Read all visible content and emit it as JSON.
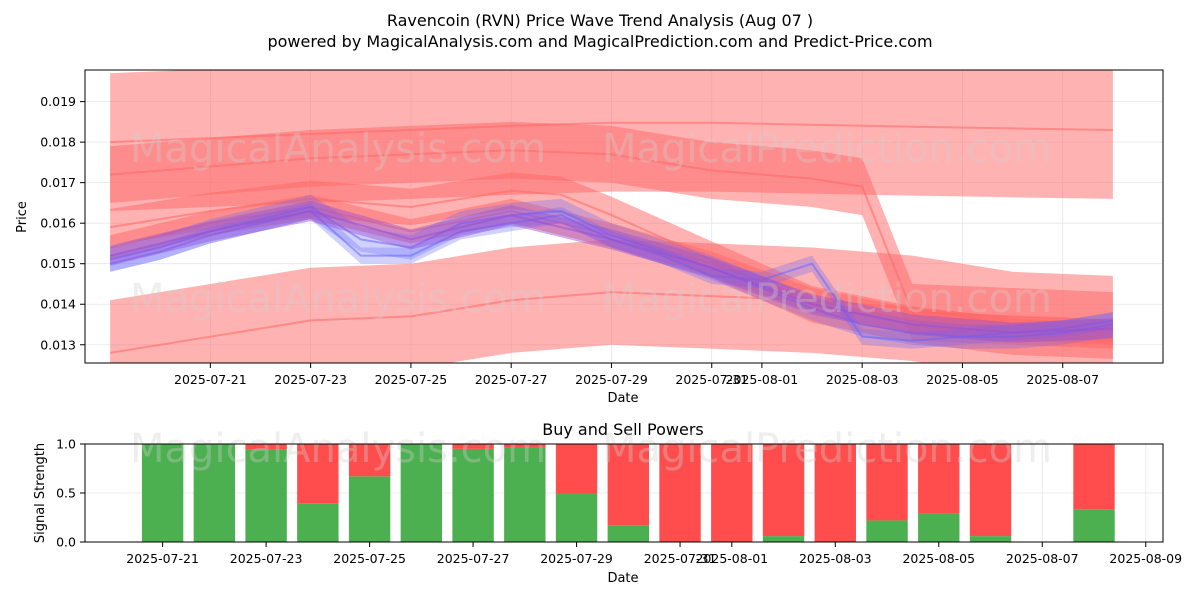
{
  "page": {
    "title": "Ravencoin (RVN) Price Wave Trend Analysis (Aug 07 )",
    "subtitle": "powered by MagicalAnalysis.com and MagicalPrediction.com and Predict-Price.com",
    "watermarks": [
      "MagicalAnalysis.com",
      "MagicalPrediction.com"
    ]
  },
  "colors": {
    "red_band": "#ff6666",
    "blue_band": "#6666ff",
    "buy": "#4caf50",
    "sell": "#ff4d4d",
    "grid": "#e6e6e6"
  },
  "chart_data": [
    {
      "type": "line",
      "title": "",
      "xlabel": "Date",
      "ylabel": "Price",
      "x_start": "2025-07-19",
      "x_end": "2025-08-08",
      "xlim": [
        "2025-07-18 12:00",
        "2025-08-09 00:00"
      ],
      "ylim": [
        0.01255,
        0.01978
      ],
      "x_ticks": [
        "2025-07-21",
        "2025-07-23",
        "2025-07-25",
        "2025-07-27",
        "2025-07-29",
        "2025-07-31",
        "2025-08-01",
        "2025-08-03",
        "2025-08-05",
        "2025-08-07"
      ],
      "x_tick_labels": [
        "2025-07-21",
        "2025-07-23",
        "2025-07-25",
        "2025-07-27",
        "2025-07-29",
        "2025-07-31",
        "2025-08-01",
        "2025-08-03",
        "2025-08-05",
        "2025-08-07"
      ],
      "y_ticks": [
        0.013,
        0.014,
        0.015,
        0.016,
        0.017,
        0.018,
        0.019
      ],
      "y_tick_labels": [
        "0.013",
        "0.014",
        "0.015",
        "0.016",
        "0.017",
        "0.018",
        "0.019"
      ],
      "grid": true,
      "series": [
        {
          "color": "red",
          "x": [
            "2025-07-19",
            "2025-07-21",
            "2025-07-23",
            "2025-07-25",
            "2025-07-27",
            "2025-07-29",
            "2025-07-31",
            "2025-08-02",
            "2025-08-04",
            "2025-08-06",
            "2025-08-08"
          ],
          "values": [
            0.018,
            0.0181,
            0.0182,
            0.0183,
            0.0184,
            0.01848,
            0.01848,
            0.01843,
            0.01838,
            0.01834,
            0.0183
          ],
          "band_width": [
            0.0034,
            0.0034,
            0.0034,
            0.0034,
            0.0034,
            0.0034,
            0.0034,
            0.0034,
            0.0034,
            0.0034,
            0.0034
          ]
        },
        {
          "color": "red",
          "x": [
            "2025-07-19",
            "2025-07-21",
            "2025-07-23",
            "2025-07-25",
            "2025-07-27",
            "2025-07-29",
            "2025-07-31",
            "2025-08-02",
            "2025-08-03",
            "2025-08-04",
            "2025-08-06",
            "2025-08-08"
          ],
          "values": [
            0.0172,
            0.0174,
            0.0176,
            0.0177,
            0.0178,
            0.0177,
            0.0173,
            0.0171,
            0.0169,
            0.0138,
            0.0137,
            0.0136
          ],
          "band_width": [
            0.0014,
            0.0014,
            0.0014,
            0.0014,
            0.0014,
            0.0014,
            0.0014,
            0.0014,
            0.0014,
            0.0014,
            0.0014,
            0.0014
          ]
        },
        {
          "color": "red",
          "x": [
            "2025-07-19",
            "2025-07-21",
            "2025-07-23",
            "2025-07-25",
            "2025-07-27",
            "2025-07-29",
            "2025-07-31",
            "2025-08-02",
            "2025-08-04",
            "2025-08-06",
            "2025-08-08"
          ],
          "values": [
            0.0128,
            0.0132,
            0.0136,
            0.0137,
            0.0141,
            0.0143,
            0.0142,
            0.0141,
            0.0139,
            0.0135,
            0.0134
          ],
          "band_width": [
            0.0026,
            0.0026,
            0.0026,
            0.0026,
            0.0026,
            0.0026,
            0.0026,
            0.0026,
            0.0026,
            0.0026,
            0.0026
          ]
        },
        {
          "color": "red",
          "x": [
            "2025-07-19",
            "2025-07-21",
            "2025-07-23",
            "2025-07-25",
            "2025-07-27",
            "2025-07-28",
            "2025-07-29",
            "2025-07-31",
            "2025-08-02",
            "2025-08-04",
            "2025-08-06",
            "2025-08-08"
          ],
          "values": [
            0.0159,
            0.0163,
            0.0166,
            0.0164,
            0.0168,
            0.0167,
            0.0162,
            0.0151,
            0.014,
            0.0135,
            0.0132,
            0.0131
          ],
          "band_width": [
            0.0009,
            0.0009,
            0.0009,
            0.0009,
            0.0009,
            0.0009,
            0.0009,
            0.0009,
            0.0009,
            0.0009,
            0.0009,
            0.0009
          ]
        },
        {
          "color": "red",
          "x": [
            "2025-07-19",
            "2025-07-21",
            "2025-07-23",
            "2025-07-25",
            "2025-07-27",
            "2025-07-29",
            "2025-07-31",
            "2025-08-02",
            "2025-08-04",
            "2025-08-06",
            "2025-08-08"
          ],
          "values": [
            0.0154,
            0.016,
            0.0164,
            0.0158,
            0.0163,
            0.0157,
            0.015,
            0.0141,
            0.0136,
            0.0134,
            0.0133
          ],
          "band_width": [
            0.0006,
            0.0006,
            0.0006,
            0.0006,
            0.0006,
            0.0006,
            0.0006,
            0.0006,
            0.0006,
            0.0006,
            0.0006
          ]
        },
        {
          "color": "blue",
          "x": [
            "2025-07-19",
            "2025-07-20",
            "2025-07-21",
            "2025-07-22",
            "2025-07-23",
            "2025-07-24",
            "2025-07-25",
            "2025-07-26",
            "2025-07-27",
            "2025-07-28",
            "2025-07-29",
            "2025-07-30",
            "2025-07-31",
            "2025-08-01",
            "2025-08-02",
            "2025-08-03",
            "2025-08-04",
            "2025-08-05",
            "2025-08-06",
            "2025-08-07",
            "2025-08-08"
          ],
          "values": [
            0.0151,
            0.0154,
            0.0158,
            0.0161,
            0.0164,
            0.0156,
            0.0154,
            0.016,
            0.0162,
            0.0163,
            0.0157,
            0.0153,
            0.0149,
            0.0144,
            0.0139,
            0.0135,
            0.0133,
            0.0132,
            0.0132,
            0.0133,
            0.0135
          ],
          "band_width": [
            0.0006,
            0.0006,
            0.0006,
            0.0006,
            0.0006,
            0.0006,
            0.0006,
            0.0006,
            0.0006,
            0.0006,
            0.0006,
            0.0006,
            0.0006,
            0.0006,
            0.0006,
            0.0006,
            0.0006,
            0.0006,
            0.0006,
            0.0006,
            0.0006
          ]
        },
        {
          "color": "blue",
          "x": [
            "2025-07-19",
            "2025-07-20",
            "2025-07-21",
            "2025-07-22",
            "2025-07-23",
            "2025-07-24",
            "2025-07-25",
            "2025-07-26",
            "2025-07-27",
            "2025-07-28",
            "2025-07-29",
            "2025-07-30",
            "2025-07-31",
            "2025-08-01",
            "2025-08-02",
            "2025-08-03",
            "2025-08-04",
            "2025-08-05",
            "2025-08-06",
            "2025-08-07",
            "2025-08-08"
          ],
          "values": [
            0.015,
            0.0153,
            0.0157,
            0.016,
            0.0163,
            0.0152,
            0.0152,
            0.0158,
            0.016,
            0.0162,
            0.0156,
            0.0152,
            0.0147,
            0.0146,
            0.015,
            0.0132,
            0.0131,
            0.0132,
            0.0133,
            0.0134,
            0.0136
          ],
          "band_width": [
            0.0004,
            0.0004,
            0.0004,
            0.0004,
            0.0004,
            0.0004,
            0.0004,
            0.0004,
            0.0004,
            0.0004,
            0.0004,
            0.0004,
            0.0004,
            0.0004,
            0.0004,
            0.0004,
            0.0004,
            0.0004,
            0.0004,
            0.0004,
            0.0004
          ]
        },
        {
          "color": "purple",
          "x": [
            "2025-07-19",
            "2025-07-21",
            "2025-07-23",
            "2025-07-25",
            "2025-07-27",
            "2025-07-29",
            "2025-07-31",
            "2025-08-02",
            "2025-08-04",
            "2025-08-06",
            "2025-08-08"
          ],
          "values": [
            0.0152,
            0.0158,
            0.0163,
            0.0156,
            0.0162,
            0.0156,
            0.0149,
            0.014,
            0.0135,
            0.0133,
            0.0134
          ],
          "band_width": [
            0.0005,
            0.0005,
            0.0005,
            0.0005,
            0.0005,
            0.0005,
            0.0005,
            0.0005,
            0.0005,
            0.0005,
            0.0005
          ]
        }
      ]
    },
    {
      "type": "bar",
      "title": "Buy and Sell Powers",
      "xlabel": "Date",
      "ylabel": "Signal Strength",
      "ylim": [
        0,
        1
      ],
      "xlim": [
        "2025-07-19 12:00",
        "2025-08-09 08:00"
      ],
      "x_ticks": [
        "2025-07-21",
        "2025-07-23",
        "2025-07-25",
        "2025-07-27",
        "2025-07-29",
        "2025-07-31",
        "2025-08-01",
        "2025-08-03",
        "2025-08-05",
        "2025-08-07",
        "2025-08-09"
      ],
      "x_tick_labels": [
        "2025-07-21",
        "2025-07-23",
        "2025-07-25",
        "2025-07-27",
        "2025-07-29",
        "2025-07-31",
        "2025-08-01",
        "2025-08-03",
        "2025-08-05",
        "2025-08-07",
        "2025-08-09"
      ],
      "y_ticks": [
        0.0,
        0.5,
        1.0
      ],
      "y_tick_labels": [
        "0.0",
        "0.5",
        "1.0"
      ],
      "grid": true,
      "categories": [
        "2025-07-21",
        "2025-07-22",
        "2025-07-23",
        "2025-07-24",
        "2025-07-25",
        "2025-07-26",
        "2025-07-27",
        "2025-07-28",
        "2025-07-29",
        "2025-07-30",
        "2025-07-31",
        "2025-08-01",
        "2025-08-02",
        "2025-08-03",
        "2025-08-04",
        "2025-08-05",
        "2025-08-06",
        "2025-08-07",
        "2025-08-08"
      ],
      "series": [
        {
          "color": "green",
          "values": [
            1.0,
            1.0,
            0.94,
            0.39,
            0.67,
            1.0,
            0.95,
            0.96,
            0.5,
            0.17,
            0.0,
            0.0,
            0.06,
            0.0,
            0.22,
            0.29,
            0.06,
            0.0,
            0.33
          ]
        },
        {
          "color": "red",
          "values": [
            0.0,
            0.0,
            0.06,
            0.61,
            0.33,
            0.0,
            0.05,
            0.04,
            0.5,
            0.83,
            1.0,
            1.0,
            0.94,
            1.0,
            0.78,
            0.71,
            0.94,
            0.0,
            0.67
          ]
        }
      ]
    }
  ]
}
